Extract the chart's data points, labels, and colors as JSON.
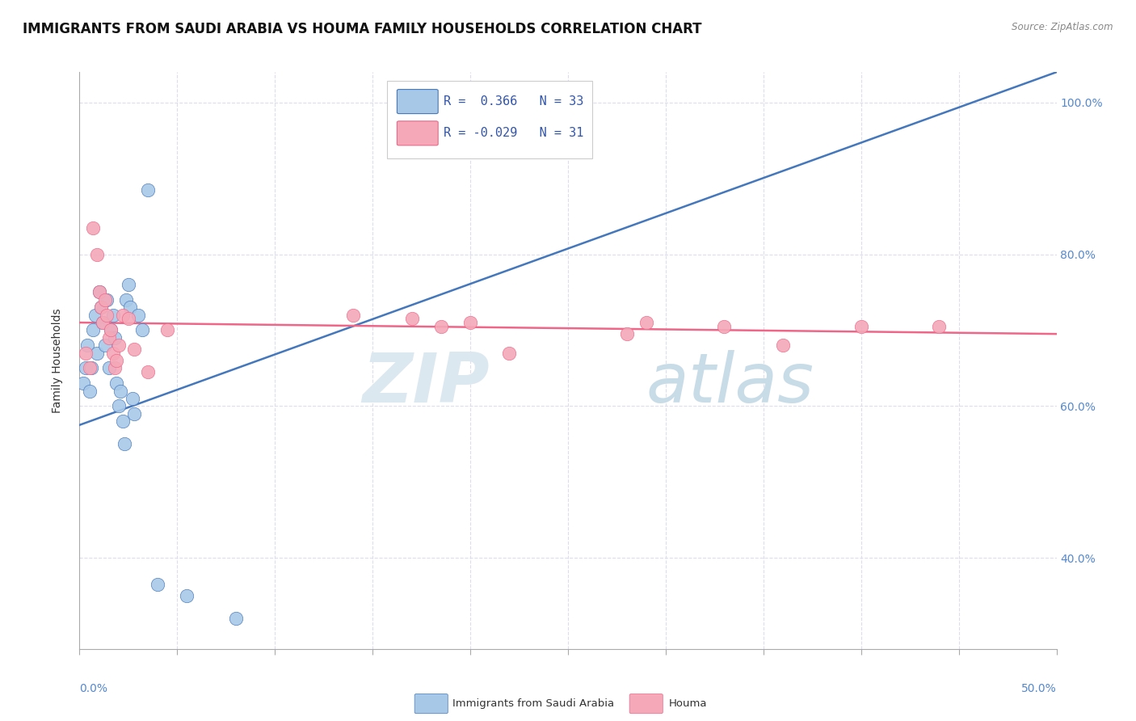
{
  "title": "IMMIGRANTS FROM SAUDI ARABIA VS HOUMA FAMILY HOUSEHOLDS CORRELATION CHART",
  "source": "Source: ZipAtlas.com",
  "ylabel": "Family Households",
  "legend_blue_r": "R =  0.366",
  "legend_blue_n": "N = 33",
  "legend_pink_r": "R = -0.029",
  "legend_pink_n": "N = 31",
  "xmin": 0.0,
  "xmax": 50.0,
  "ymin": 28.0,
  "ymax": 104.0,
  "blue_scatter_x": [
    0.2,
    0.3,
    0.4,
    0.5,
    0.6,
    0.7,
    0.8,
    0.9,
    1.0,
    1.1,
    1.2,
    1.3,
    1.4,
    1.5,
    1.6,
    1.7,
    1.8,
    1.9,
    2.0,
    2.1,
    2.2,
    2.3,
    2.4,
    2.5,
    2.6,
    2.7,
    2.8,
    3.0,
    3.2,
    3.5,
    4.0,
    5.5,
    8.0
  ],
  "blue_scatter_y": [
    63.0,
    65.0,
    68.0,
    62.0,
    65.0,
    70.0,
    72.0,
    67.0,
    75.0,
    73.0,
    71.0,
    68.0,
    74.0,
    65.0,
    70.0,
    72.0,
    69.0,
    63.0,
    60.0,
    62.0,
    58.0,
    55.0,
    74.0,
    76.0,
    73.0,
    61.0,
    59.0,
    72.0,
    70.0,
    88.5,
    36.5,
    35.0,
    32.0
  ],
  "pink_scatter_x": [
    0.3,
    0.5,
    0.7,
    0.9,
    1.0,
    1.1,
    1.2,
    1.3,
    1.4,
    1.5,
    1.6,
    1.7,
    1.8,
    1.9,
    2.0,
    2.2,
    2.5,
    2.8,
    3.5,
    4.5,
    14.0,
    17.0,
    18.5,
    20.0,
    22.0,
    28.0,
    29.0,
    33.0,
    36.0,
    40.0,
    44.0
  ],
  "pink_scatter_y": [
    67.0,
    65.0,
    83.5,
    80.0,
    75.0,
    73.0,
    71.0,
    74.0,
    72.0,
    69.0,
    70.0,
    67.0,
    65.0,
    66.0,
    68.0,
    72.0,
    71.5,
    67.5,
    64.5,
    70.0,
    72.0,
    71.5,
    70.5,
    71.0,
    67.0,
    69.5,
    71.0,
    70.5,
    68.0,
    70.5,
    70.5
  ],
  "blue_line_x": [
    0.0,
    50.0
  ],
  "blue_line_y": [
    57.5,
    104.0
  ],
  "pink_line_x": [
    0.0,
    50.0
  ],
  "pink_line_y": [
    71.0,
    69.5
  ],
  "blue_color": "#A8C8E8",
  "pink_color": "#F4A8B8",
  "blue_line_color": "#4477BB",
  "pink_line_color": "#EE6688",
  "background_color": "#ffffff",
  "grid_color": "#ddddee",
  "title_fontsize": 12,
  "axis_label_fontsize": 10,
  "tick_fontsize": 10,
  "watermark_zip": "ZIP",
  "watermark_atlas": "atlas",
  "watermark_color": "#dce8f0"
}
